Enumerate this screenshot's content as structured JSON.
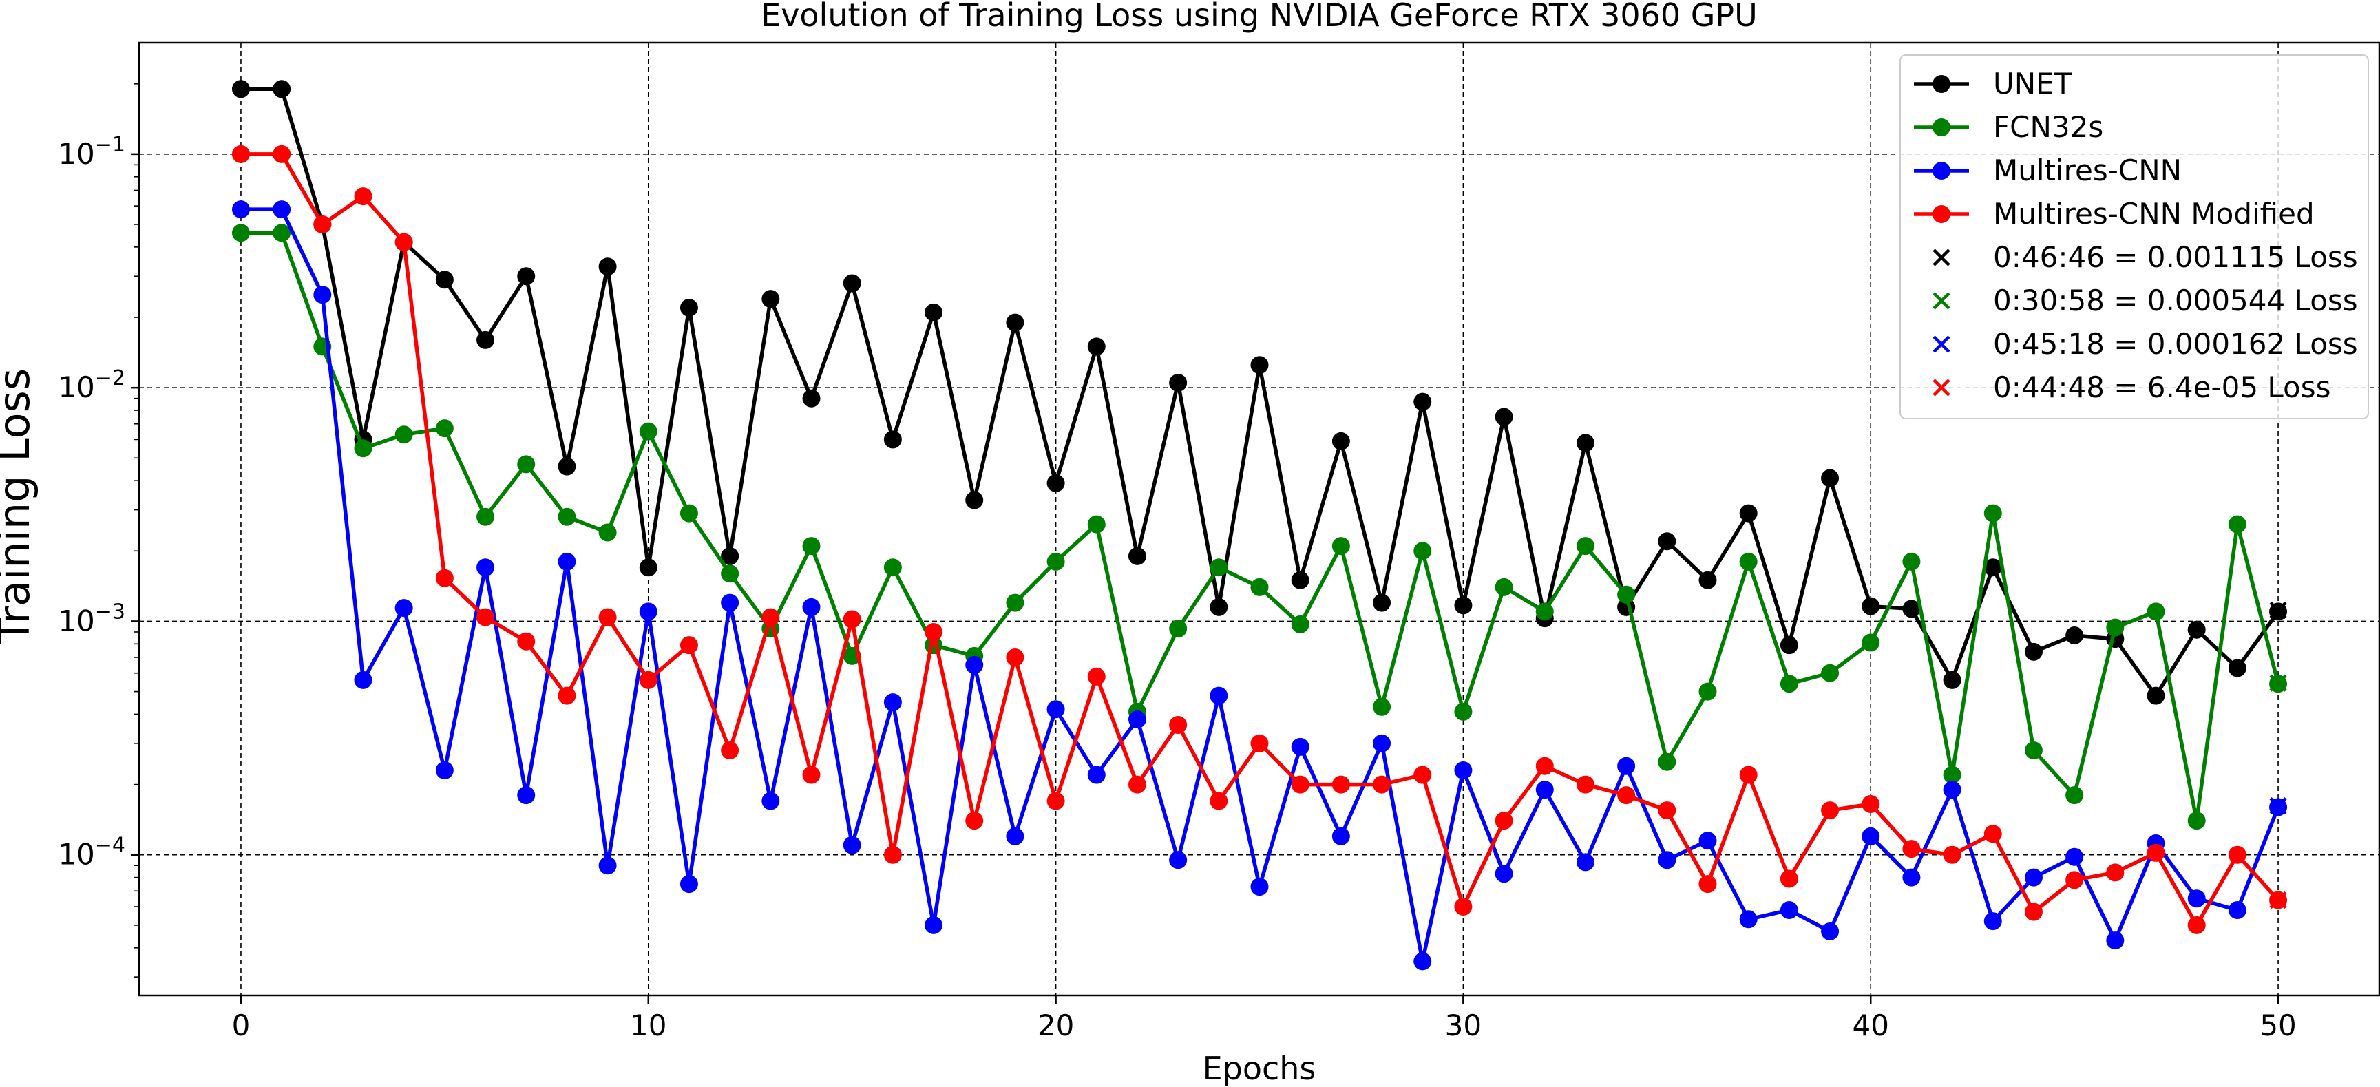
{
  "chart_data": {
    "type": "line",
    "title": "Evolution of Training Loss using NVIDIA GeForce RTX 3060 GPU",
    "xlabel": "Epochs",
    "ylabel": "Training Loss",
    "yscale": "log",
    "xlim": [
      -2.5,
      52.5
    ],
    "ylim": [
      2.5e-05,
      0.3
    ],
    "grid": true,
    "grid_style": "dashed",
    "legend_position": "top-right",
    "x_ticks": [
      0,
      10,
      20,
      30,
      40,
      50
    ],
    "x_tick_labels": [
      "0",
      "10",
      "20",
      "30",
      "40",
      "50"
    ],
    "y_ticks": [
      0.0001,
      0.001,
      0.01,
      0.1
    ],
    "y_tick_labels": [
      {
        "base": "10",
        "exp": "−4"
      },
      {
        "base": "10",
        "exp": "−3"
      },
      {
        "base": "10",
        "exp": "−2"
      },
      {
        "base": "10",
        "exp": "−1"
      }
    ],
    "x": [
      0,
      1,
      2,
      3,
      4,
      5,
      6,
      7,
      8,
      9,
      10,
      11,
      12,
      13,
      14,
      15,
      16,
      17,
      18,
      19,
      20,
      21,
      22,
      23,
      24,
      25,
      26,
      27,
      28,
      29,
      30,
      31,
      32,
      33,
      34,
      35,
      36,
      37,
      38,
      39,
      40,
      41,
      42,
      43,
      44,
      45,
      46,
      47,
      48,
      49,
      50
    ],
    "series": [
      {
        "name": "UNET",
        "color": "#000000",
        "values": [
          0.19,
          0.19,
          0.05,
          0.006,
          0.042,
          0.029,
          0.016,
          0.03,
          0.0046,
          0.033,
          0.0017,
          0.022,
          0.0019,
          0.024,
          0.009,
          0.028,
          0.006,
          0.021,
          0.0033,
          0.019,
          0.0039,
          0.015,
          0.0019,
          0.0105,
          0.00115,
          0.0125,
          0.0015,
          0.0059,
          0.0012,
          0.0087,
          0.00117,
          0.0075,
          0.00103,
          0.0058,
          0.00115,
          0.0022,
          0.0015,
          0.0029,
          0.00079,
          0.0041,
          0.00116,
          0.00113,
          0.00056,
          0.0017,
          0.00074,
          0.00087,
          0.00084,
          0.00048,
          0.00092,
          0.00063,
          0.0011
        ]
      },
      {
        "name": "FCN32s",
        "color": "#008000",
        "values": [
          0.046,
          0.046,
          0.015,
          0.0055,
          0.0063,
          0.0067,
          0.0028,
          0.0047,
          0.0028,
          0.0024,
          0.0065,
          0.0029,
          0.0016,
          0.00093,
          0.0021,
          0.00071,
          0.0017,
          0.00079,
          0.00071,
          0.0012,
          0.0018,
          0.0026,
          0.00041,
          0.00093,
          0.0017,
          0.0014,
          0.00097,
          0.0021,
          0.00043,
          0.002,
          0.00041,
          0.0014,
          0.0011,
          0.0021,
          0.0013,
          0.00025,
          0.0005,
          0.0018,
          0.00054,
          0.0006,
          0.00081,
          0.0018,
          0.00022,
          0.0029,
          0.00028,
          0.00018,
          0.00094,
          0.0011,
          0.00014,
          0.0026,
          0.00054
        ]
      },
      {
        "name": "Multires-CNN",
        "color": "#0000ff",
        "values": [
          0.058,
          0.058,
          0.025,
          0.00056,
          0.00114,
          0.00023,
          0.0017,
          0.00018,
          0.0018,
          9e-05,
          0.0011,
          7.5e-05,
          0.0012,
          0.00017,
          0.00115,
          0.00011,
          0.00045,
          5e-05,
          0.00065,
          0.00012,
          0.00042,
          0.00022,
          0.00038,
          9.5e-05,
          0.00048,
          7.3e-05,
          0.00029,
          0.00012,
          0.0003,
          3.5e-05,
          0.00023,
          8.3e-05,
          0.00019,
          9.3e-05,
          0.00024,
          9.5e-05,
          0.000115,
          5.3e-05,
          5.8e-05,
          4.7e-05,
          0.00012,
          8e-05,
          0.00019,
          5.2e-05,
          8e-05,
          9.8e-05,
          4.3e-05,
          0.000112,
          6.5e-05,
          5.8e-05,
          0.00016
        ]
      },
      {
        "name": "Multires-CNN Modified",
        "color": "#ff0000",
        "values": [
          0.1,
          0.1,
          0.05,
          0.066,
          0.042,
          0.00153,
          0.00104,
          0.00082,
          0.00048,
          0.00104,
          0.00056,
          0.00079,
          0.00028,
          0.00104,
          0.00022,
          0.00102,
          0.0001,
          0.0009,
          0.00014,
          0.0007,
          0.00017,
          0.00058,
          0.0002,
          0.00036,
          0.00017,
          0.0003,
          0.0002,
          0.0002,
          0.0002,
          0.00022,
          6e-05,
          0.00014,
          0.00024,
          0.0002,
          0.00018,
          0.000155,
          7.5e-05,
          0.00022,
          7.9e-05,
          0.000155,
          0.000165,
          0.000106,
          0.0001,
          0.000123,
          5.7e-05,
          7.8e-05,
          8.4e-05,
          0.000102,
          5e-05,
          0.0001,
          6.4e-05
        ]
      }
    ],
    "final_markers": [
      {
        "label": "0:46:46 = 0.001115 Loss",
        "color": "#000000",
        "x": 50,
        "y": 0.001115
      },
      {
        "label": "0:30:58 = 0.000544 Loss",
        "color": "#008000",
        "x": 50,
        "y": 0.000544
      },
      {
        "label": "0:45:18 = 0.000162 Loss",
        "color": "#0000ff",
        "x": 50,
        "y": 0.000162
      },
      {
        "label": "0:44:48 = 6.4e-05 Loss",
        "color": "#ff0000",
        "x": 50,
        "y": 6.4e-05
      }
    ]
  }
}
